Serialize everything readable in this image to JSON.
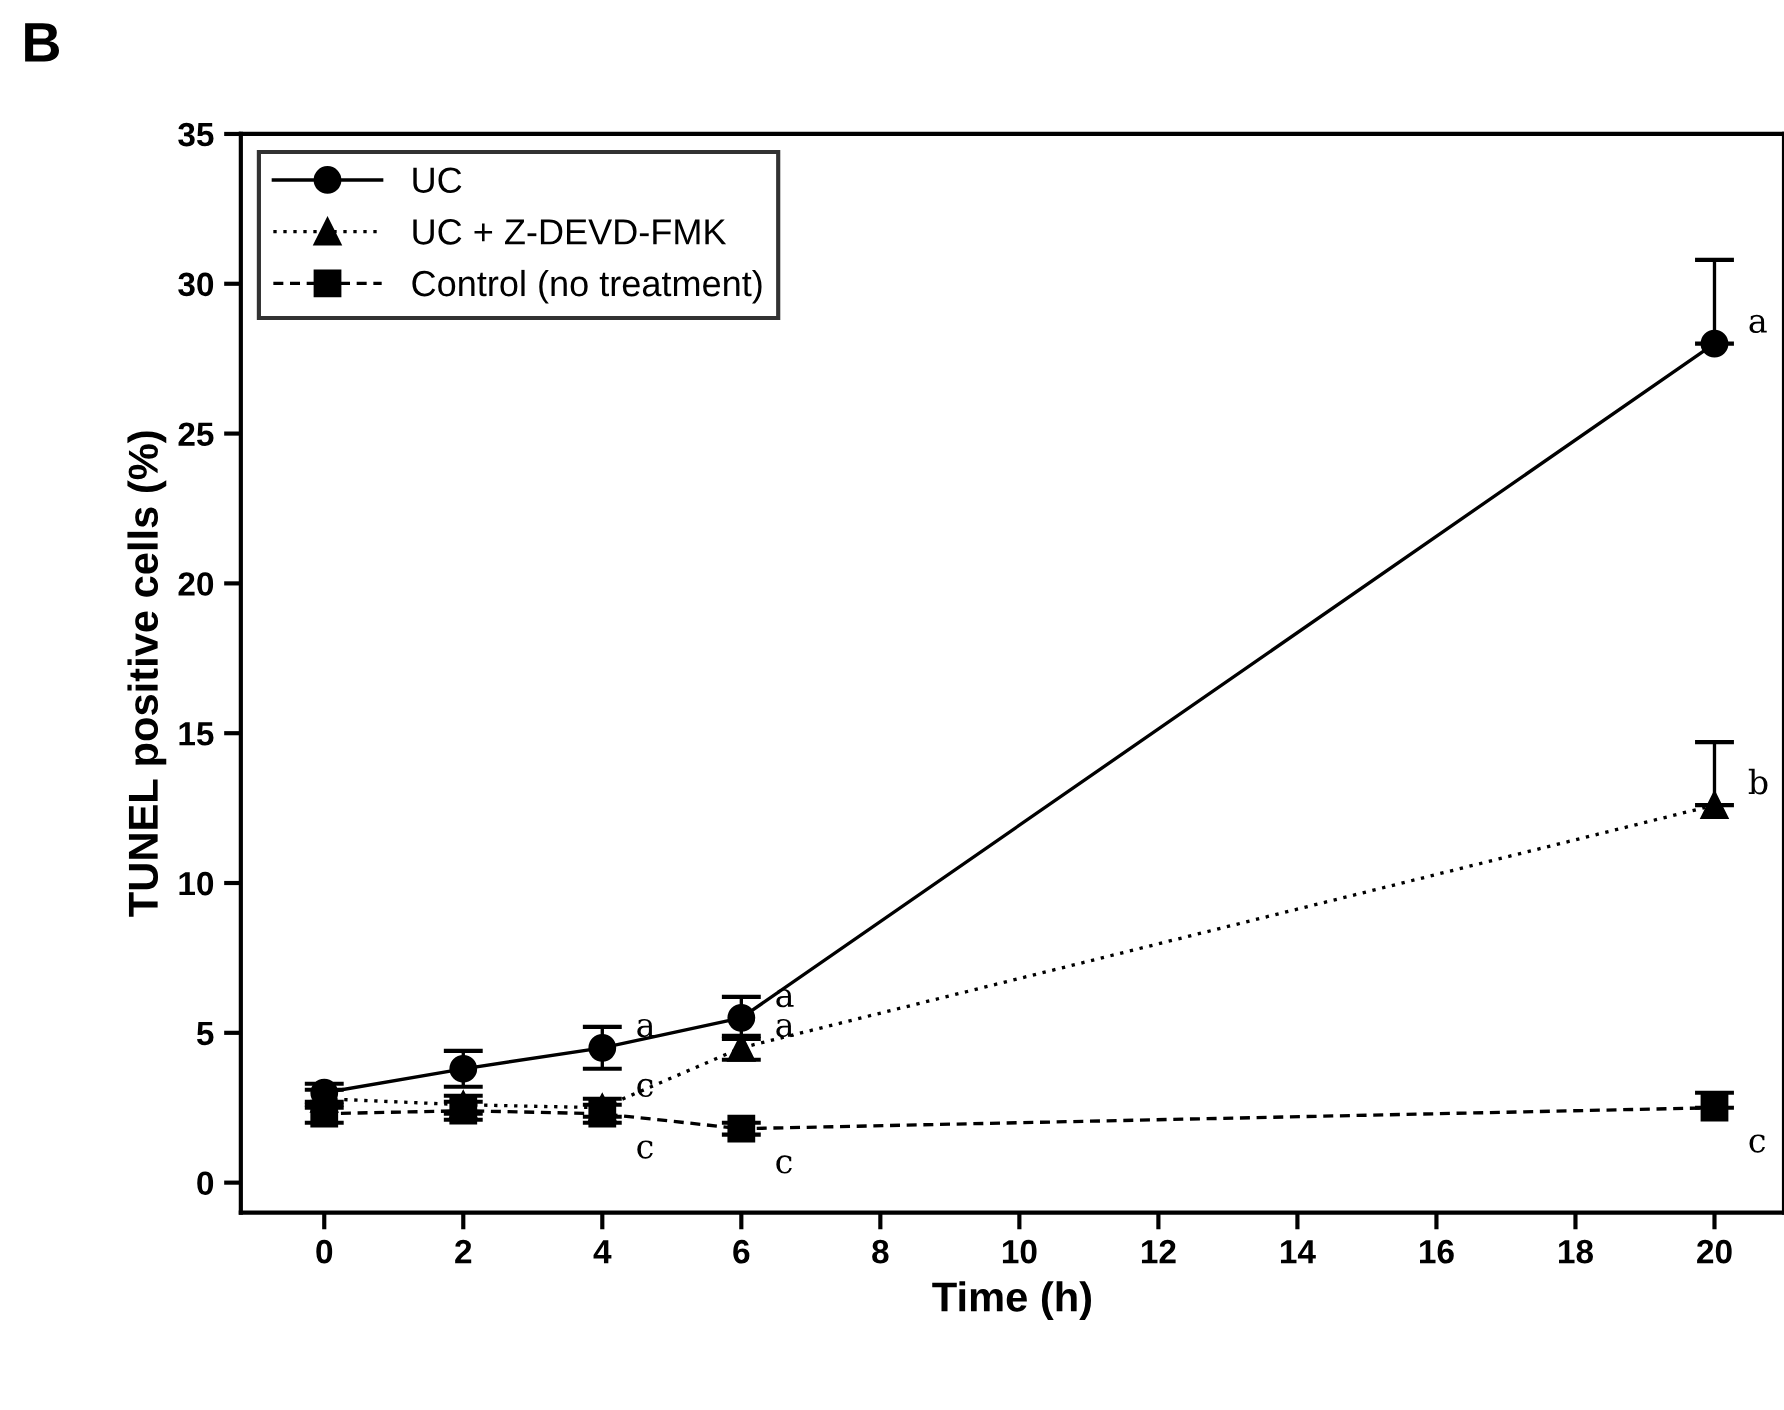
{
  "chart_data": {
    "type": "line",
    "title": "B",
    "xlabel": "Time (h)",
    "ylabel": "TUNEL positive cells (%)",
    "x": [
      0,
      2,
      4,
      6,
      20
    ],
    "series": [
      {
        "name": "UC",
        "color": "#000000",
        "marker": "circle",
        "line_style": "solid",
        "values": [
          3.0,
          3.8,
          4.5,
          5.5,
          28.0
        ],
        "errors": [
          0.3,
          0.6,
          0.7,
          0.7,
          [
            28.0,
            30.8
          ]
        ]
      },
      {
        "name": "UC + Z-DEVD-FMK",
        "color": "#000000",
        "marker": "triangle",
        "line_style": "dotted",
        "values": [
          2.8,
          2.6,
          2.5,
          4.5,
          12.6
        ],
        "errors": [
          0.3,
          0.3,
          0.3,
          0.4,
          [
            12.6,
            14.7
          ]
        ]
      },
      {
        "name": "Control (no treatment)",
        "color": "#000000",
        "marker": "square",
        "line_style": "dashed",
        "values": [
          2.3,
          2.4,
          2.3,
          1.8,
          2.5
        ],
        "errors": [
          0.3,
          0.3,
          0.3,
          0.2,
          [
            2.5,
            3.0
          ]
        ]
      }
    ],
    "annotations": [
      {
        "text": "a",
        "x": 4,
        "y": 4.5
      },
      {
        "text": "a",
        "x": 6,
        "y": 5.5
      },
      {
        "text": "a",
        "x": 6,
        "y": 4.5
      },
      {
        "text": "a",
        "x": 20,
        "y": 28.0
      },
      {
        "text": "b",
        "x": 20,
        "y": 12.6
      },
      {
        "text": "c",
        "x": 4,
        "y": 2.5
      },
      {
        "text": "c",
        "x": 4,
        "y": 2.3
      },
      {
        "text": "c",
        "x": 6,
        "y": 1.8
      },
      {
        "text": "c",
        "x": 20,
        "y": 2.5
      }
    ],
    "xlim": [
      -1.2,
      21
    ],
    "ylim": [
      -1,
      35
    ],
    "xticks": [
      0,
      2,
      4,
      6,
      8,
      10,
      12,
      14,
      16,
      18,
      20
    ],
    "yticks": [
      0,
      5,
      10,
      15,
      20,
      25,
      30,
      35
    ],
    "grid": false,
    "legend": "top left"
  }
}
